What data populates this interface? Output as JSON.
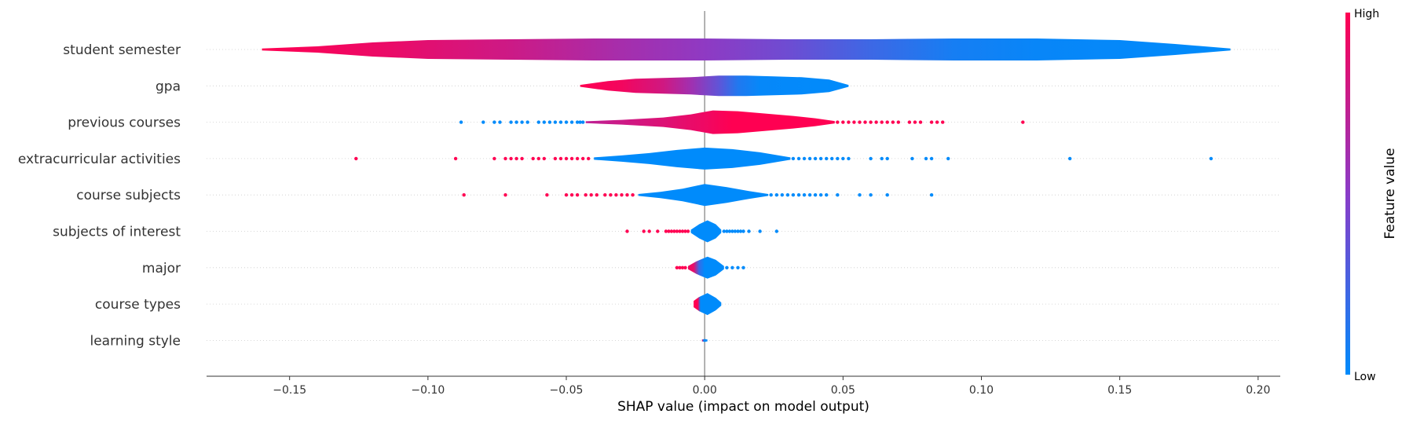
{
  "chart_data": {
    "type": "violin",
    "xlabel": "SHAP value (impact on model output)",
    "xlim": [
      -0.18,
      0.208
    ],
    "x_ticks": [
      -0.15,
      -0.1,
      -0.05,
      0.0,
      0.05,
      0.1,
      0.15,
      0.2
    ],
    "x_tick_labels": [
      "−0.15",
      "−0.10",
      "−0.05",
      "0.00",
      "0.05",
      "0.10",
      "0.15",
      "0.20"
    ],
    "grid": false,
    "colorbar": {
      "title": "Feature value",
      "high_label": "High",
      "low_label": "Low",
      "high_color": "#ff0052",
      "low_color": "#008bfb"
    },
    "features": [
      {
        "name": "student semester",
        "min": -0.16,
        "max": 0.19,
        "profile": [
          [
            -0.16,
            1.2
          ],
          [
            -0.14,
            4
          ],
          [
            -0.12,
            9
          ],
          [
            -0.1,
            12
          ],
          [
            -0.07,
            13
          ],
          [
            -0.04,
            14
          ],
          [
            -0.02,
            14
          ],
          [
            0.0,
            14
          ],
          [
            0.03,
            13
          ],
          [
            0.06,
            13
          ],
          [
            0.09,
            14
          ],
          [
            0.12,
            14
          ],
          [
            0.15,
            12
          ],
          [
            0.17,
            7
          ],
          [
            0.19,
            1.2
          ]
        ],
        "color_stops": [
          [
            -0.16,
            1.0
          ],
          [
            -0.11,
            0.9
          ],
          [
            -0.07,
            0.78
          ],
          [
            -0.03,
            0.62
          ],
          [
            0.0,
            0.52
          ],
          [
            0.03,
            0.4
          ],
          [
            0.06,
            0.22
          ],
          [
            0.09,
            0.08
          ],
          [
            0.12,
            0.03
          ],
          [
            0.19,
            0.0
          ]
        ],
        "outliers": []
      },
      {
        "name": "gpa",
        "min": -0.045,
        "max": 0.052,
        "profile": [
          [
            -0.045,
            1.2
          ],
          [
            -0.035,
            6
          ],
          [
            -0.025,
            9
          ],
          [
            -0.015,
            10
          ],
          [
            -0.005,
            11
          ],
          [
            0.005,
            13
          ],
          [
            0.015,
            13
          ],
          [
            0.025,
            12
          ],
          [
            0.035,
            11
          ],
          [
            0.045,
            8
          ],
          [
            0.052,
            1.2
          ]
        ],
        "color_stops": [
          [
            -0.045,
            1.0
          ],
          [
            -0.03,
            0.95
          ],
          [
            -0.015,
            0.8
          ],
          [
            -0.005,
            0.6
          ],
          [
            0.005,
            0.35
          ],
          [
            0.012,
            0.12
          ],
          [
            0.02,
            0.02
          ],
          [
            0.052,
            0.0
          ]
        ],
        "outliers": []
      },
      {
        "name": "previous courses",
        "min": -0.043,
        "max": 0.047,
        "profile": [
          [
            -0.043,
            1.2
          ],
          [
            -0.03,
            3
          ],
          [
            -0.015,
            6
          ],
          [
            -0.005,
            10
          ],
          [
            0.003,
            15
          ],
          [
            0.012,
            14
          ],
          [
            0.022,
            11
          ],
          [
            0.032,
            8
          ],
          [
            0.04,
            5
          ],
          [
            0.047,
            1.5
          ]
        ],
        "color_stops": [
          [
            -0.043,
            0.72
          ],
          [
            -0.03,
            0.78
          ],
          [
            -0.015,
            0.85
          ],
          [
            0.0,
            0.93
          ],
          [
            0.01,
            1.0
          ],
          [
            0.047,
            1.0
          ]
        ],
        "outliers": [
          {
            "x": -0.088,
            "v": 0
          },
          {
            "x": -0.08,
            "v": 0
          },
          {
            "x": -0.076,
            "v": 0
          },
          {
            "x": -0.074,
            "v": 0
          },
          {
            "x": -0.07,
            "v": 0
          },
          {
            "x": -0.068,
            "v": 0
          },
          {
            "x": -0.066,
            "v": 0
          },
          {
            "x": -0.064,
            "v": 0
          },
          {
            "x": -0.06,
            "v": 0
          },
          {
            "x": -0.058,
            "v": 0
          },
          {
            "x": -0.056,
            "v": 0
          },
          {
            "x": -0.054,
            "v": 0
          },
          {
            "x": -0.052,
            "v": 0
          },
          {
            "x": -0.05,
            "v": 0
          },
          {
            "x": -0.048,
            "v": 0
          },
          {
            "x": -0.046,
            "v": 0
          },
          {
            "x": -0.045,
            "v": 0
          },
          {
            "x": -0.044,
            "v": 0
          },
          {
            "x": 0.048,
            "v": 1
          },
          {
            "x": 0.05,
            "v": 1
          },
          {
            "x": 0.052,
            "v": 1
          },
          {
            "x": 0.054,
            "v": 1
          },
          {
            "x": 0.056,
            "v": 1
          },
          {
            "x": 0.058,
            "v": 1
          },
          {
            "x": 0.06,
            "v": 1
          },
          {
            "x": 0.062,
            "v": 1
          },
          {
            "x": 0.064,
            "v": 1
          },
          {
            "x": 0.066,
            "v": 1
          },
          {
            "x": 0.068,
            "v": 1
          },
          {
            "x": 0.07,
            "v": 1
          },
          {
            "x": 0.074,
            "v": 1
          },
          {
            "x": 0.076,
            "v": 1
          },
          {
            "x": 0.078,
            "v": 1
          },
          {
            "x": 0.082,
            "v": 1
          },
          {
            "x": 0.084,
            "v": 1
          },
          {
            "x": 0.086,
            "v": 1
          },
          {
            "x": 0.115,
            "v": 1
          }
        ]
      },
      {
        "name": "extracurricular activities",
        "min": -0.04,
        "max": 0.031,
        "profile": [
          [
            -0.04,
            1.5
          ],
          [
            -0.03,
            4
          ],
          [
            -0.02,
            7
          ],
          [
            -0.01,
            11
          ],
          [
            0.0,
            14
          ],
          [
            0.01,
            12
          ],
          [
            0.02,
            8
          ],
          [
            0.031,
            1.5
          ]
        ],
        "color_stops": [
          [
            -0.04,
            0.0
          ],
          [
            0.031,
            0.0
          ]
        ],
        "outliers": [
          {
            "x": -0.126,
            "v": 1
          },
          {
            "x": -0.09,
            "v": 1
          },
          {
            "x": -0.076,
            "v": 1
          },
          {
            "x": -0.072,
            "v": 1
          },
          {
            "x": -0.07,
            "v": 1
          },
          {
            "x": -0.068,
            "v": 1
          },
          {
            "x": -0.066,
            "v": 1
          },
          {
            "x": -0.062,
            "v": 1
          },
          {
            "x": -0.06,
            "v": 1
          },
          {
            "x": -0.058,
            "v": 1
          },
          {
            "x": -0.054,
            "v": 1
          },
          {
            "x": -0.052,
            "v": 1
          },
          {
            "x": -0.05,
            "v": 1
          },
          {
            "x": -0.048,
            "v": 1
          },
          {
            "x": -0.046,
            "v": 1
          },
          {
            "x": -0.044,
            "v": 1
          },
          {
            "x": -0.042,
            "v": 1
          },
          {
            "x": 0.032,
            "v": 0
          },
          {
            "x": 0.034,
            "v": 0
          },
          {
            "x": 0.036,
            "v": 0
          },
          {
            "x": 0.038,
            "v": 0
          },
          {
            "x": 0.04,
            "v": 0
          },
          {
            "x": 0.042,
            "v": 0
          },
          {
            "x": 0.044,
            "v": 0
          },
          {
            "x": 0.046,
            "v": 0
          },
          {
            "x": 0.048,
            "v": 0
          },
          {
            "x": 0.05,
            "v": 0
          },
          {
            "x": 0.052,
            "v": 0
          },
          {
            "x": 0.06,
            "v": 0
          },
          {
            "x": 0.064,
            "v": 0
          },
          {
            "x": 0.066,
            "v": 0
          },
          {
            "x": 0.075,
            "v": 0
          },
          {
            "x": 0.08,
            "v": 0
          },
          {
            "x": 0.082,
            "v": 0
          },
          {
            "x": 0.088,
            "v": 0
          },
          {
            "x": 0.132,
            "v": 0
          },
          {
            "x": 0.183,
            "v": 0
          }
        ]
      },
      {
        "name": "course subjects",
        "min": -0.024,
        "max": 0.023,
        "profile": [
          [
            -0.024,
            1.2
          ],
          [
            -0.016,
            4
          ],
          [
            -0.008,
            8
          ],
          [
            0.0,
            14
          ],
          [
            0.008,
            10
          ],
          [
            0.016,
            5
          ],
          [
            0.023,
            1.2
          ]
        ],
        "color_stops": [
          [
            -0.024,
            0.0
          ],
          [
            0.023,
            0.0
          ]
        ],
        "outliers": [
          {
            "x": -0.087,
            "v": 1
          },
          {
            "x": -0.072,
            "v": 1
          },
          {
            "x": -0.057,
            "v": 1
          },
          {
            "x": -0.05,
            "v": 1
          },
          {
            "x": -0.048,
            "v": 1
          },
          {
            "x": -0.046,
            "v": 1
          },
          {
            "x": -0.043,
            "v": 1
          },
          {
            "x": -0.041,
            "v": 1
          },
          {
            "x": -0.039,
            "v": 1
          },
          {
            "x": -0.036,
            "v": 1
          },
          {
            "x": -0.034,
            "v": 1
          },
          {
            "x": -0.032,
            "v": 1
          },
          {
            "x": -0.03,
            "v": 1
          },
          {
            "x": -0.028,
            "v": 1
          },
          {
            "x": -0.026,
            "v": 1
          },
          {
            "x": 0.024,
            "v": 0
          },
          {
            "x": 0.026,
            "v": 0
          },
          {
            "x": 0.028,
            "v": 0
          },
          {
            "x": 0.03,
            "v": 0
          },
          {
            "x": 0.032,
            "v": 0
          },
          {
            "x": 0.034,
            "v": 0
          },
          {
            "x": 0.036,
            "v": 0
          },
          {
            "x": 0.038,
            "v": 0
          },
          {
            "x": 0.04,
            "v": 0
          },
          {
            "x": 0.042,
            "v": 0
          },
          {
            "x": 0.044,
            "v": 0
          },
          {
            "x": 0.048,
            "v": 0
          },
          {
            "x": 0.056,
            "v": 0
          },
          {
            "x": 0.06,
            "v": 0
          },
          {
            "x": 0.066,
            "v": 0
          },
          {
            "x": 0.082,
            "v": 0
          }
        ]
      },
      {
        "name": "subjects of interest",
        "min": -0.005,
        "max": 0.006,
        "profile": [
          [
            -0.005,
            2
          ],
          [
            -0.002,
            9
          ],
          [
            0.001,
            14
          ],
          [
            0.004,
            9
          ],
          [
            0.006,
            2
          ]
        ],
        "color_stops": [
          [
            -0.005,
            0.0
          ],
          [
            0.006,
            0.0
          ]
        ],
        "outliers": [
          {
            "x": -0.028,
            "v": 1
          },
          {
            "x": -0.022,
            "v": 1
          },
          {
            "x": -0.02,
            "v": 1
          },
          {
            "x": -0.017,
            "v": 1
          },
          {
            "x": -0.014,
            "v": 1
          },
          {
            "x": -0.013,
            "v": 1
          },
          {
            "x": -0.012,
            "v": 1
          },
          {
            "x": -0.011,
            "v": 1
          },
          {
            "x": -0.01,
            "v": 1
          },
          {
            "x": -0.009,
            "v": 1
          },
          {
            "x": -0.008,
            "v": 1
          },
          {
            "x": -0.007,
            "v": 1
          },
          {
            "x": -0.006,
            "v": 1
          },
          {
            "x": 0.007,
            "v": 0
          },
          {
            "x": 0.008,
            "v": 0
          },
          {
            "x": 0.009,
            "v": 0
          },
          {
            "x": 0.01,
            "v": 0
          },
          {
            "x": 0.011,
            "v": 0
          },
          {
            "x": 0.012,
            "v": 0
          },
          {
            "x": 0.013,
            "v": 0
          },
          {
            "x": 0.014,
            "v": 0
          },
          {
            "x": 0.016,
            "v": 0
          },
          {
            "x": 0.02,
            "v": 0
          },
          {
            "x": 0.026,
            "v": 0
          }
        ]
      },
      {
        "name": "major",
        "min": -0.006,
        "max": 0.007,
        "profile": [
          [
            -0.006,
            2
          ],
          [
            -0.003,
            8
          ],
          [
            0.001,
            14
          ],
          [
            0.004,
            10
          ],
          [
            0.007,
            2
          ]
        ],
        "color_stops": [
          [
            -0.006,
            0.95
          ],
          [
            -0.004,
            0.9
          ],
          [
            -0.002,
            0.2
          ],
          [
            0.0,
            0.0
          ],
          [
            0.007,
            0.0
          ]
        ],
        "outliers": [
          {
            "x": -0.01,
            "v": 1
          },
          {
            "x": -0.009,
            "v": 1
          },
          {
            "x": -0.008,
            "v": 1
          },
          {
            "x": -0.007,
            "v": 1
          },
          {
            "x": 0.008,
            "v": 0
          },
          {
            "x": 0.01,
            "v": 0
          },
          {
            "x": 0.012,
            "v": 0
          },
          {
            "x": 0.014,
            "v": 0
          }
        ]
      },
      {
        "name": "course types",
        "min": -0.004,
        "max": 0.006,
        "profile": [
          [
            -0.004,
            4
          ],
          [
            -0.002,
            9
          ],
          [
            0.001,
            14
          ],
          [
            0.004,
            8
          ],
          [
            0.006,
            2
          ]
        ],
        "color_stops": [
          [
            -0.004,
            1.0
          ],
          [
            -0.0025,
            1.0
          ],
          [
            -0.0015,
            0.0
          ],
          [
            0.006,
            0.0
          ]
        ],
        "outliers": []
      },
      {
        "name": "learning style",
        "min": -0.001,
        "max": 0.001,
        "profile": [
          [
            -0.001,
            1.2
          ],
          [
            0.0,
            1.8
          ],
          [
            0.001,
            1.2
          ]
        ],
        "color_stops": [
          [
            -0.001,
            0.9
          ],
          [
            -0.0003,
            0.0
          ],
          [
            0.001,
            0.0
          ]
        ],
        "outliers": []
      }
    ]
  }
}
